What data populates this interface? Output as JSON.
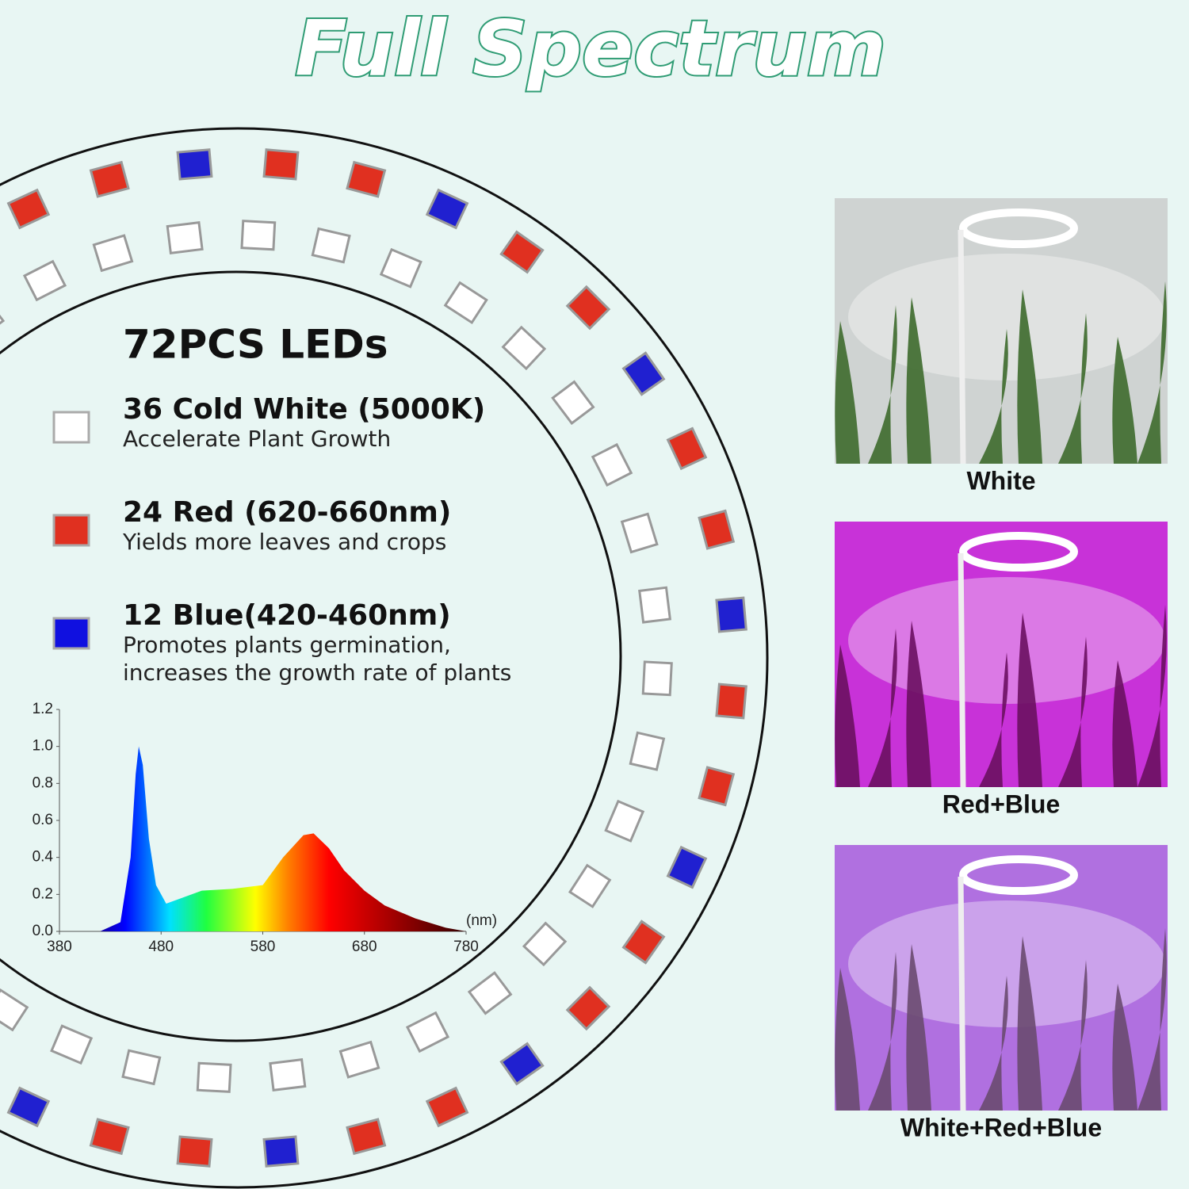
{
  "header": {
    "title": "Full Spectrum"
  },
  "leds": {
    "title": "72PCS LEDs",
    "items": [
      {
        "label": "36 Cold White (5000K)",
        "lines": [
          "Accelerate Plant Growth"
        ],
        "color": "#ffffff"
      },
      {
        "label": "24 Red (620-660nm)",
        "lines": [
          "Yields more leaves and crops"
        ],
        "color": "#e03020"
      },
      {
        "label": "12 Blue(420-460nm)",
        "lines": [
          "Promotes plants germination,",
          "increases the growth rate of plants"
        ],
        "color": "#1010e0"
      }
    ]
  },
  "chart_data": {
    "type": "area",
    "x": [
      380,
      420,
      440,
      450,
      455,
      458,
      462,
      468,
      475,
      485,
      500,
      520,
      550,
      580,
      600,
      620,
      630,
      645,
      660,
      680,
      700,
      730,
      760,
      780
    ],
    "values": [
      0,
      0,
      0.05,
      0.4,
      0.85,
      1.0,
      0.9,
      0.5,
      0.25,
      0.15,
      0.18,
      0.22,
      0.23,
      0.25,
      0.4,
      0.52,
      0.53,
      0.45,
      0.33,
      0.22,
      0.14,
      0.07,
      0.02,
      0
    ],
    "xlim": [
      380,
      780
    ],
    "ylim": [
      0,
      1.2
    ],
    "xticks": [
      380,
      480,
      580,
      680,
      780
    ],
    "yticks": [
      {
        "value": 0,
        "label": "0.0"
      },
      0.2,
      0.4,
      0.6,
      0.8,
      {
        "value": 1,
        "label": "1.0"
      },
      1.2
    ],
    "x_unit": "(nm)"
  },
  "photos": [
    {
      "caption": "White",
      "color": "#cfd3d2"
    },
    {
      "caption": "Red+Blue",
      "color": "#c832d8"
    },
    {
      "caption": "White+Red+Blue",
      "color": "#b070e0"
    }
  ]
}
